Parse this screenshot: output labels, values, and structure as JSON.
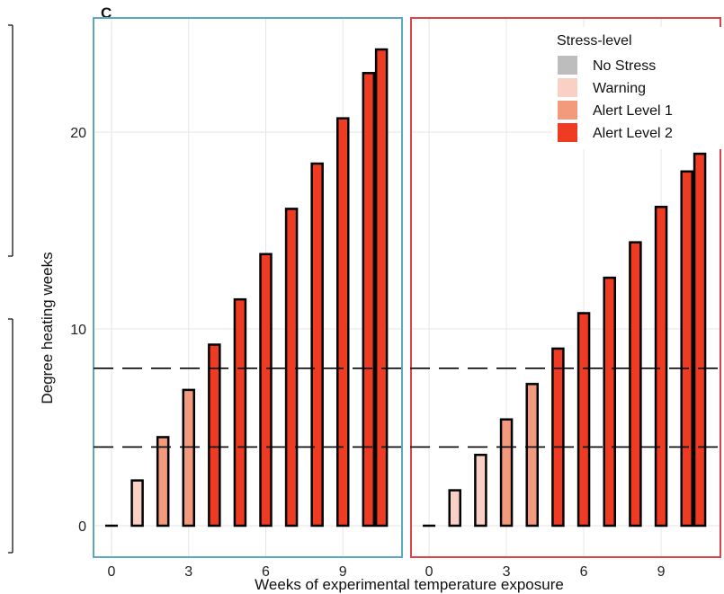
{
  "panel_label": "C",
  "chart_data": {
    "type": "bar",
    "xlabel": "Weeks of experimental temperature exposure",
    "ylabel": "Degree heating weeks",
    "xlim": [
      -0.7,
      11.3
    ],
    "ylim": [
      -1.5,
      25.5
    ],
    "x_ticks": [
      0,
      3,
      6,
      9
    ],
    "y_ticks": [
      0,
      10,
      20
    ],
    "reference_lines": [
      4,
      8
    ],
    "colors": {
      "No Stress": "#bdbdbd",
      "Warning": "#f9d0c4",
      "Alert Level 1": "#f39a7c",
      "Alert Level 2": "#ee3b22"
    },
    "legend": {
      "title": "Stress-level",
      "position": "top-right",
      "entries": [
        "No Stress",
        "Warning",
        "Alert Level 1",
        "Alert Level 2"
      ]
    },
    "panels": [
      {
        "frame_color": "#5ba8c0",
        "x": [
          0,
          1,
          2,
          3,
          4,
          5,
          6,
          7,
          8,
          9,
          10,
          10.5
        ],
        "values": [
          0,
          2.3,
          4.5,
          6.9,
          9.2,
          11.5,
          13.8,
          16.1,
          18.4,
          20.7,
          23.0,
          24.2
        ],
        "levels": [
          "No Stress",
          "Warning",
          "Alert Level 1",
          "Alert Level 1",
          "Alert Level 2",
          "Alert Level 2",
          "Alert Level 2",
          "Alert Level 2",
          "Alert Level 2",
          "Alert Level 2",
          "Alert Level 2",
          "Alert Level 2"
        ]
      },
      {
        "frame_color": "#d9434b",
        "x": [
          0,
          1,
          2,
          3,
          4,
          5,
          6,
          7,
          8,
          9,
          10,
          10.5
        ],
        "values": [
          0,
          1.8,
          3.6,
          5.4,
          7.2,
          9.0,
          10.8,
          12.6,
          14.4,
          16.2,
          18.0,
          18.9
        ],
        "levels": [
          "No Stress",
          "Warning",
          "Warning",
          "Alert Level 1",
          "Alert Level 1",
          "Alert Level 2",
          "Alert Level 2",
          "Alert Level 2",
          "Alert Level 2",
          "Alert Level 2",
          "Alert Level 2",
          "Alert Level 2"
        ]
      }
    ]
  }
}
